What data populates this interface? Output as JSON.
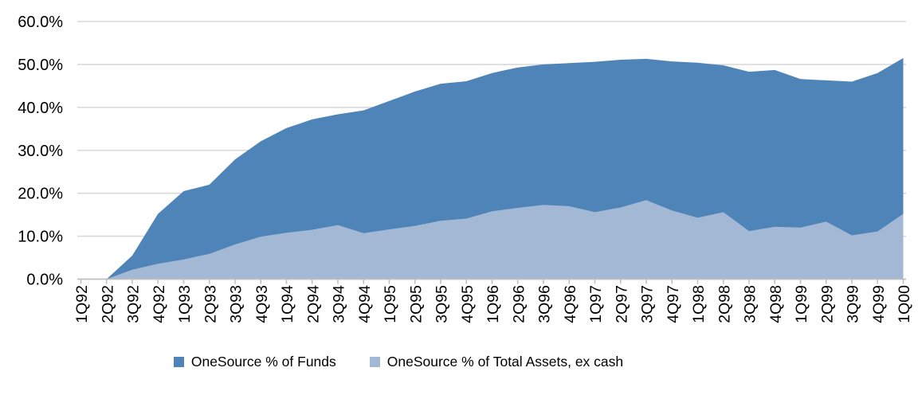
{
  "chart_data": {
    "type": "area",
    "title": "",
    "xlabel": "",
    "ylabel": "",
    "categories": [
      "1Q92",
      "2Q92",
      "3Q92",
      "4Q92",
      "1Q93",
      "2Q93",
      "3Q93",
      "4Q93",
      "1Q94",
      "2Q94",
      "3Q94",
      "4Q94",
      "1Q95",
      "2Q95",
      "3Q95",
      "4Q95",
      "1Q96",
      "2Q96",
      "3Q96",
      "4Q96",
      "1Q97",
      "2Q97",
      "3Q97",
      "4Q97",
      "1Q98",
      "2Q98",
      "3Q98",
      "4Q98",
      "1Q99",
      "2Q99",
      "3Q99",
      "4Q99",
      "1Q00"
    ],
    "series": [
      {
        "name": "OneSource % of Funds",
        "color": "#4e84b8",
        "values": [
          0,
          0,
          5.5,
          15.2,
          20.5,
          22.0,
          27.9,
          32.1,
          35.2,
          37.2,
          38.4,
          39.3,
          41.5,
          43.7,
          45.5,
          46.1,
          48.0,
          49.3,
          50.0,
          50.3,
          50.6,
          51.1,
          51.3,
          50.7,
          50.4,
          49.8,
          48.3,
          48.7,
          46.6,
          46.3,
          46.0,
          48.0,
          51.5
        ]
      },
      {
        "name": "OneSource % of Total Assets, ex cash",
        "color": "#a3b8d4",
        "values": [
          0,
          0,
          2.2,
          3.6,
          4.6,
          5.9,
          8.1,
          9.9,
          10.8,
          11.5,
          12.6,
          10.7,
          11.6,
          12.4,
          13.6,
          14.1,
          15.8,
          16.6,
          17.3,
          17.0,
          15.6,
          16.7,
          18.4,
          16.0,
          14.3,
          15.6,
          11.2,
          12.2,
          12.0,
          13.4,
          10.2,
          11.1,
          15.2
        ]
      }
    ],
    "stacked": false,
    "ylim": [
      0,
      60
    ],
    "yticks": [
      0,
      10,
      20,
      30,
      40,
      50,
      60
    ],
    "ytick_labels": [
      "0.0%",
      "10.0%",
      "20.0%",
      "30.0%",
      "40.0%",
      "50.0%",
      "60.0%"
    ],
    "grid": true,
    "legend_position": "bottom"
  },
  "style_colors": {
    "gridline": "#d9d9d9",
    "axis_line": "#bfbfbf",
    "tick_text": "#000000"
  }
}
